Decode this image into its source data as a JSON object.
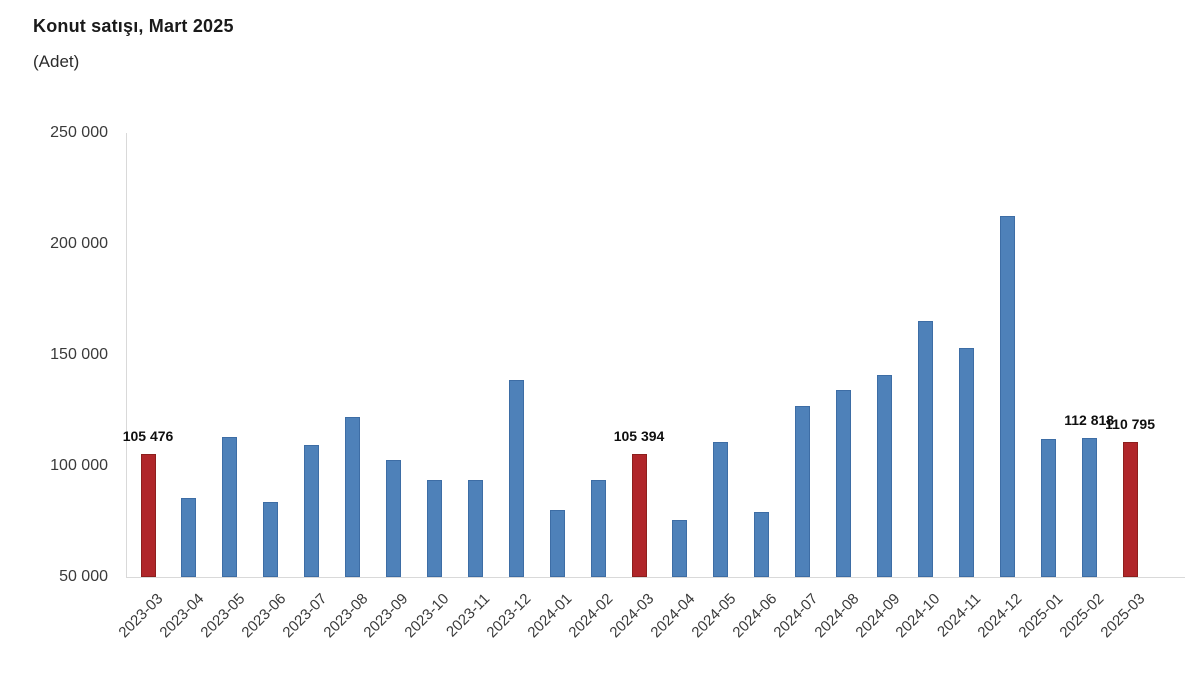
{
  "header": {
    "title": "Konut satışı, Mart 2025",
    "subtitle": "(Adet)"
  },
  "chart_data": {
    "type": "bar",
    "title": "Konut satışı, Mart 2025",
    "unit_label": "(Adet)",
    "xlabel": "",
    "ylabel": "",
    "categories": [
      "2023-03",
      "2023-04",
      "2023-05",
      "2023-06",
      "2023-07",
      "2023-08",
      "2023-09",
      "2023-10",
      "2023-11",
      "2023-12",
      "2024-01",
      "2024-02",
      "2024-03",
      "2024-04",
      "2024-05",
      "2024-06",
      "2024-07",
      "2024-08",
      "2024-09",
      "2024-10",
      "2024-11",
      "2024-12",
      "2025-01",
      "2025-02",
      "2025-03"
    ],
    "values": [
      105476,
      85652,
      113206,
      83636,
      109548,
      122091,
      102656,
      93761,
      93514,
      138577,
      80308,
      93902,
      105394,
      75569,
      110588,
      79313,
      127088,
      134155,
      140919,
      165138,
      153014,
      212637,
      112173,
      112818,
      110795
    ],
    "highlight_indices": [
      0,
      12,
      24
    ],
    "data_labels": [
      {
        "index": 0,
        "text": "105 476"
      },
      {
        "index": 12,
        "text": "105 394"
      },
      {
        "index": 23,
        "text": "112 818"
      },
      {
        "index": 24,
        "text": "110 795"
      }
    ],
    "y_axis": {
      "min": 50000,
      "max": 250000,
      "step": 50000,
      "tick_labels": [
        "50 000",
        "100 000",
        "150 000",
        "200 000",
        "250 000"
      ]
    },
    "ylim": [
      50000,
      250000
    ],
    "grid": "off",
    "legend": "none",
    "colors": {
      "bar_fill": "#4e81b9",
      "bar_border": "#3d6da5",
      "highlight_fill": "#b0262a",
      "highlight_border": "#8d1f1d",
      "axis_line": "#d9d9d9",
      "tick_text": "#3a3a3a",
      "label_text": "#0f0f0f"
    }
  }
}
